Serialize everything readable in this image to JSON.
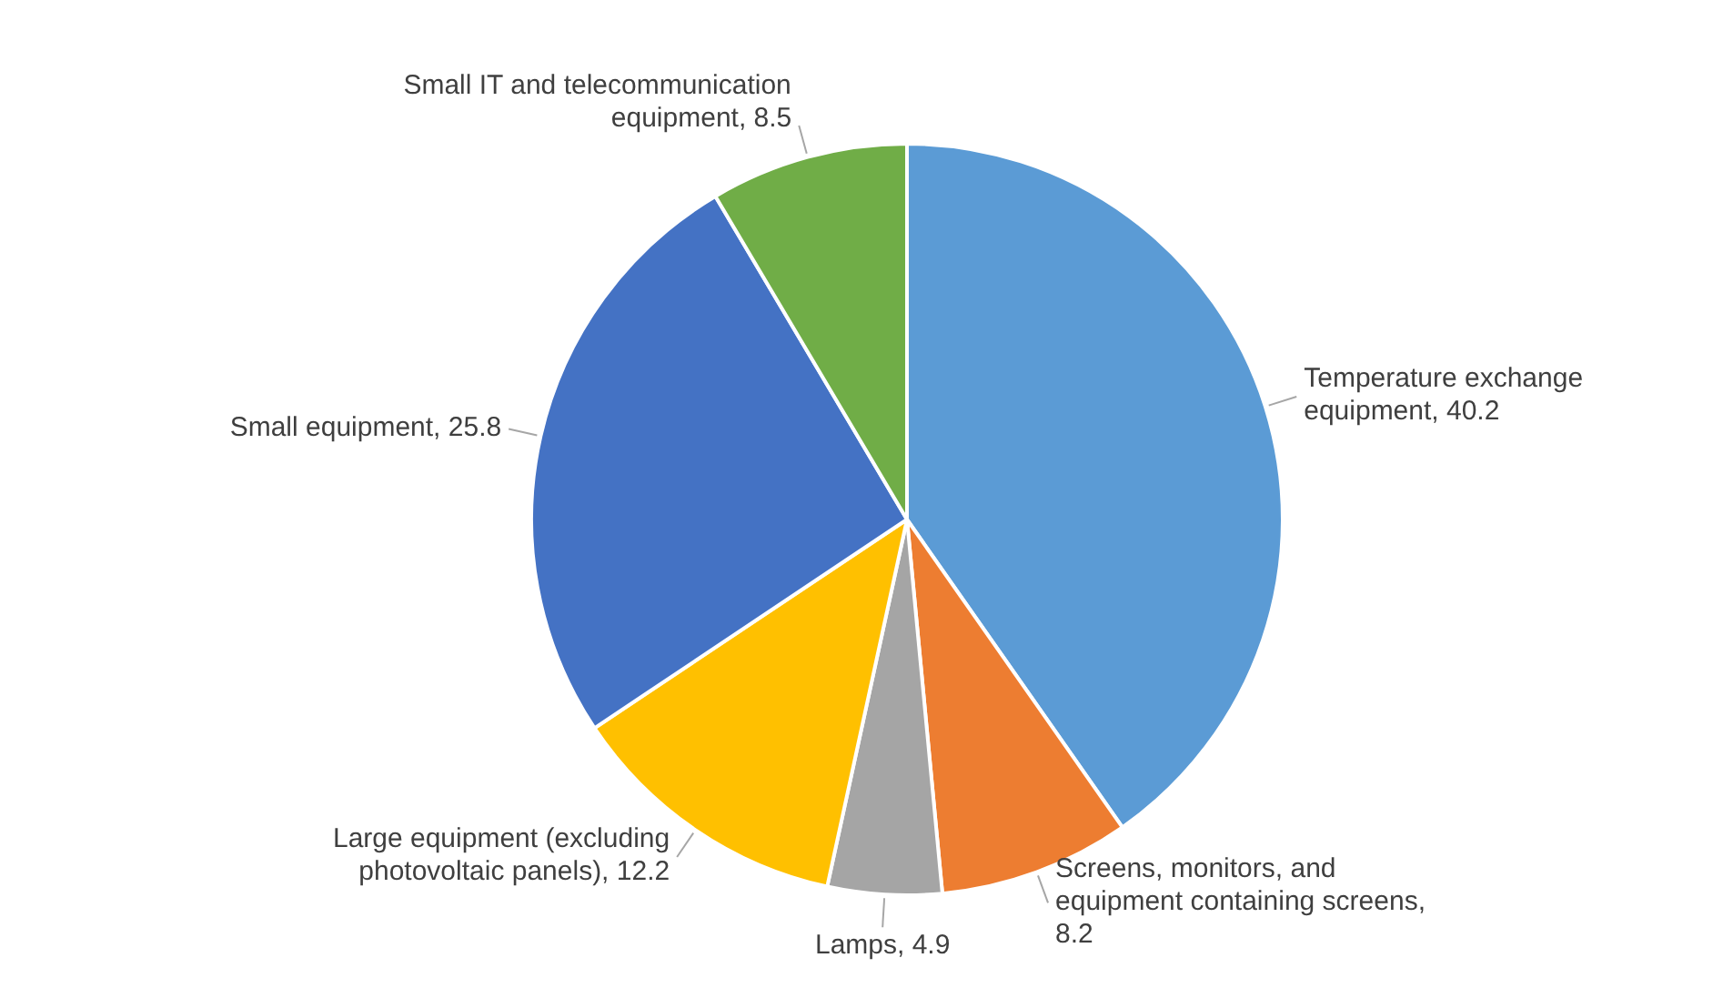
{
  "chart_data": {
    "type": "pie",
    "categories": [
      "Temperature exchange equipment",
      "Screens, monitors, and equipment containing screens",
      "Lamps",
      "Large equipment (excluding photovoltaic panels)",
      "Small equipment",
      "Small IT and telecommunication equipment"
    ],
    "values": [
      40.2,
      8.2,
      4.9,
      12.2,
      25.8,
      8.5
    ],
    "value_labels": [
      ", 40.2",
      ", 8.2",
      ", 4.9",
      ", 12.2",
      ", 25.8",
      ", 8.5"
    ],
    "colors": [
      "#5b9bd5",
      "#ed7d31",
      "#a5a5a5",
      "#ffc000",
      "#4472c4",
      "#70ad47"
    ],
    "legend": false
  }
}
